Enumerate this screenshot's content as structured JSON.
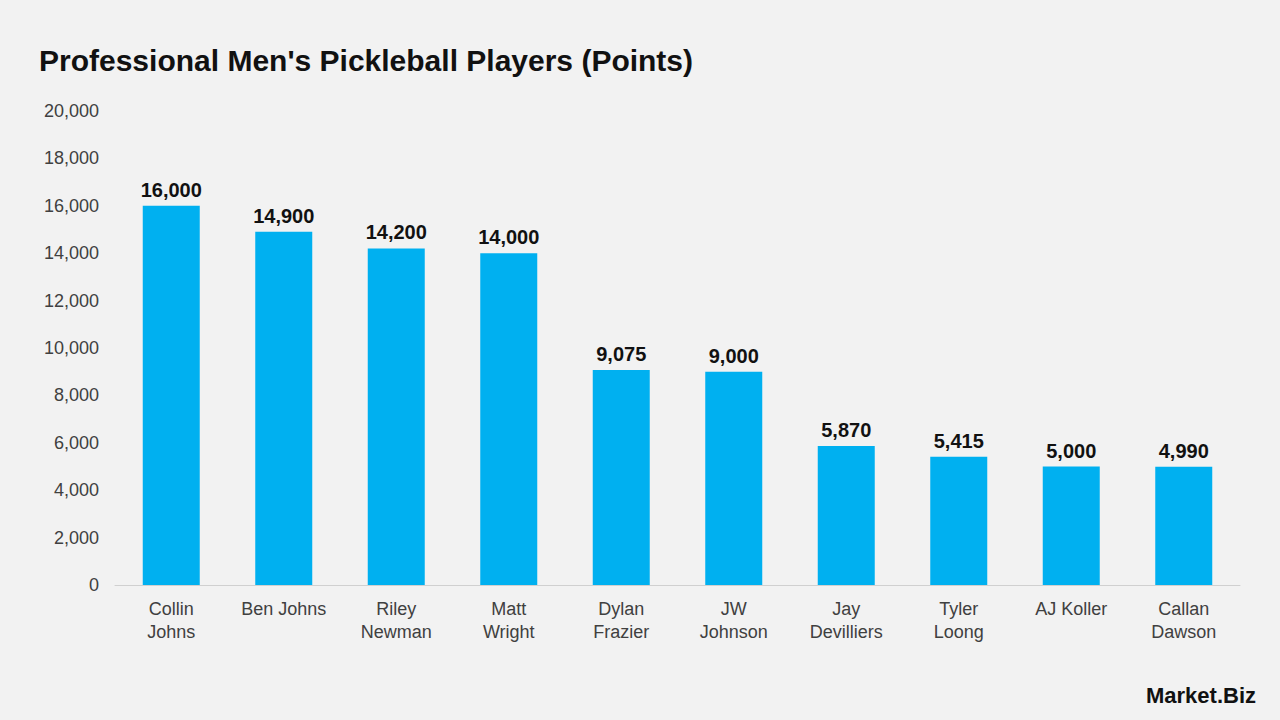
{
  "chart_data": {
    "type": "bar",
    "title": "Professional Men's Pickleball Players (Points)",
    "categories": [
      "Collin Johns",
      "Ben Johns",
      "Riley Newman",
      "Matt Wright",
      "Dylan Frazier",
      "JW Johnson",
      "Jay Devilliers",
      "Tyler Loong",
      "AJ Koller",
      "Callan Dawson"
    ],
    "values": [
      16000,
      14900,
      14200,
      14000,
      9075,
      9000,
      5870,
      5415,
      5000,
      4990
    ],
    "value_labels": [
      "16,000",
      "14,900",
      "14,200",
      "14,000",
      "9,075",
      "9,000",
      "5,870",
      "5,415",
      "5,000",
      "4,990"
    ],
    "color": "#00b0f0",
    "ylim": [
      0,
      20000
    ],
    "yticks": [
      0,
      {
        "value": 2000,
        "label": "2,000"
      },
      {
        "value": 4000,
        "label": "4,000"
      },
      {
        "value": 6000,
        "label": "6,000"
      },
      {
        "value": 8000,
        "label": "8,000"
      },
      {
        "value": 10000,
        "label": "10,000"
      },
      {
        "value": 12000,
        "label": "12,000"
      },
      {
        "value": 14000,
        "label": "14,000"
      },
      {
        "value": 16000,
        "label": "16,000"
      },
      {
        "value": 18000,
        "label": "18,000"
      },
      {
        "value": 20000,
        "label": "20,000"
      }
    ],
    "grid": false,
    "data_labels": true,
    "annotations": [
      "Market.Biz"
    ]
  }
}
